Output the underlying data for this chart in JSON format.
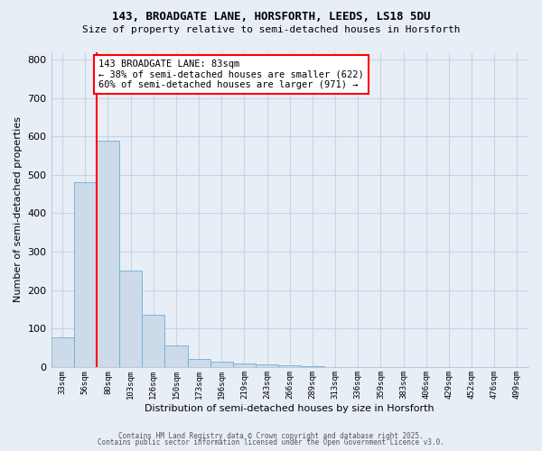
{
  "title1": "143, BROADGATE LANE, HORSFORTH, LEEDS, LS18 5DU",
  "title2": "Size of property relative to semi-detached houses in Horsforth",
  "xlabel": "Distribution of semi-detached houses by size in Horsforth",
  "ylabel": "Number of semi-detached properties",
  "categories": [
    "33sqm",
    "56sqm",
    "80sqm",
    "103sqm",
    "126sqm",
    "150sqm",
    "173sqm",
    "196sqm",
    "219sqm",
    "243sqm",
    "266sqm",
    "289sqm",
    "313sqm",
    "336sqm",
    "359sqm",
    "383sqm",
    "406sqm",
    "429sqm",
    "452sqm",
    "476sqm",
    "499sqm"
  ],
  "values": [
    78,
    480,
    590,
    250,
    135,
    55,
    20,
    15,
    10,
    6,
    4,
    2,
    0,
    0,
    0,
    0,
    0,
    0,
    0,
    0,
    0
  ],
  "bar_color": "#ccdaea",
  "bar_edge_color": "#6aaed6",
  "grid_color": "#c8d4e4",
  "background_color": "#e8eef6",
  "vline_x": 1.5,
  "vline_color": "red",
  "annotation_text": "143 BROADGATE LANE: 83sqm\n← 38% of semi-detached houses are smaller (622)\n60% of semi-detached houses are larger (971) →",
  "annotation_box_color": "white",
  "annotation_edge_color": "red",
  "footer1": "Contains HM Land Registry data © Crown copyright and database right 2025.",
  "footer2": "Contains public sector information licensed under the Open Government Licence v3.0.",
  "ylim": [
    0,
    820
  ],
  "yticks": [
    0,
    100,
    200,
    300,
    400,
    500,
    600,
    700,
    800
  ]
}
